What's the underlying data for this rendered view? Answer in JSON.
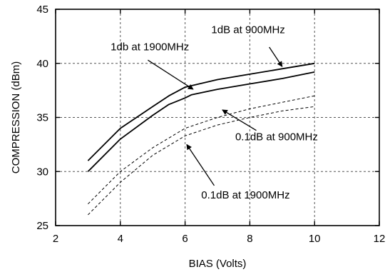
{
  "chart_data": {
    "type": "line",
    "xlabel": "BIAS (Volts)",
    "ylabel": "COMPRESSION (dBm)",
    "xlim": [
      2,
      12
    ],
    "ylim": [
      25,
      45
    ],
    "xticks": [
      "2",
      "4",
      "6",
      "8",
      "10",
      "12"
    ],
    "yticks": [
      "25",
      "30",
      "35",
      "40",
      "45"
    ],
    "grid": true,
    "series": [
      {
        "name": "1dB at 900MHz",
        "style": "solid",
        "color": "#000000",
        "x": [
          3,
          4,
          5,
          5.5,
          6,
          7,
          8,
          9,
          10
        ],
        "y": [
          31,
          34,
          36,
          37,
          37.8,
          38.5,
          39.0,
          39.5,
          40.0
        ]
      },
      {
        "name": "1db at 1900MHz",
        "style": "solid",
        "color": "#000000",
        "x": [
          3,
          4,
          5,
          5.5,
          6,
          6.2,
          7,
          8,
          9,
          10
        ],
        "y": [
          30,
          33,
          35.2,
          36.2,
          36.8,
          37.1,
          37.6,
          38.1,
          38.6,
          39.2
        ]
      },
      {
        "name": "0.1dB at 900MHz",
        "style": "dashed",
        "color": "#000000",
        "x": [
          3,
          4,
          5,
          6,
          7,
          8,
          9,
          10
        ],
        "y": [
          27,
          30,
          32.2,
          34,
          35,
          35.8,
          36.4,
          37.0
        ]
      },
      {
        "name": "0.1dB at 1900MHz",
        "style": "dashed",
        "color": "#000000",
        "x": [
          3,
          4,
          5,
          6,
          7,
          8,
          9,
          10
        ],
        "y": [
          26,
          29,
          31.5,
          33.3,
          34.3,
          35.0,
          35.6,
          36.0
        ]
      }
    ],
    "annotations": [
      {
        "text": "1dB at 900MHz",
        "label_at": [
          7.95,
          42.8
        ],
        "arrow_from": [
          8.6,
          41.5
        ],
        "arrow_to": [
          9.0,
          39.7
        ],
        "anchor": "middle"
      },
      {
        "text": "1db at 1900MHz",
        "label_at": [
          3.7,
          41.2
        ],
        "arrow_from": [
          4.85,
          40.3
        ],
        "arrow_to": [
          6.25,
          37.6
        ],
        "anchor": "start"
      },
      {
        "text": "0.1dB at 900MHz",
        "label_at": [
          7.55,
          32.9
        ],
        "arrow_from": [
          8.2,
          33.8
        ],
        "arrow_to": [
          7.15,
          35.7
        ],
        "anchor": "start"
      },
      {
        "text": "0.1dB at 1900MHz",
        "label_at": [
          6.5,
          27.5
        ],
        "arrow_from": [
          6.9,
          28.7
        ],
        "arrow_to": [
          6.05,
          32.5
        ],
        "anchor": "start"
      }
    ]
  }
}
